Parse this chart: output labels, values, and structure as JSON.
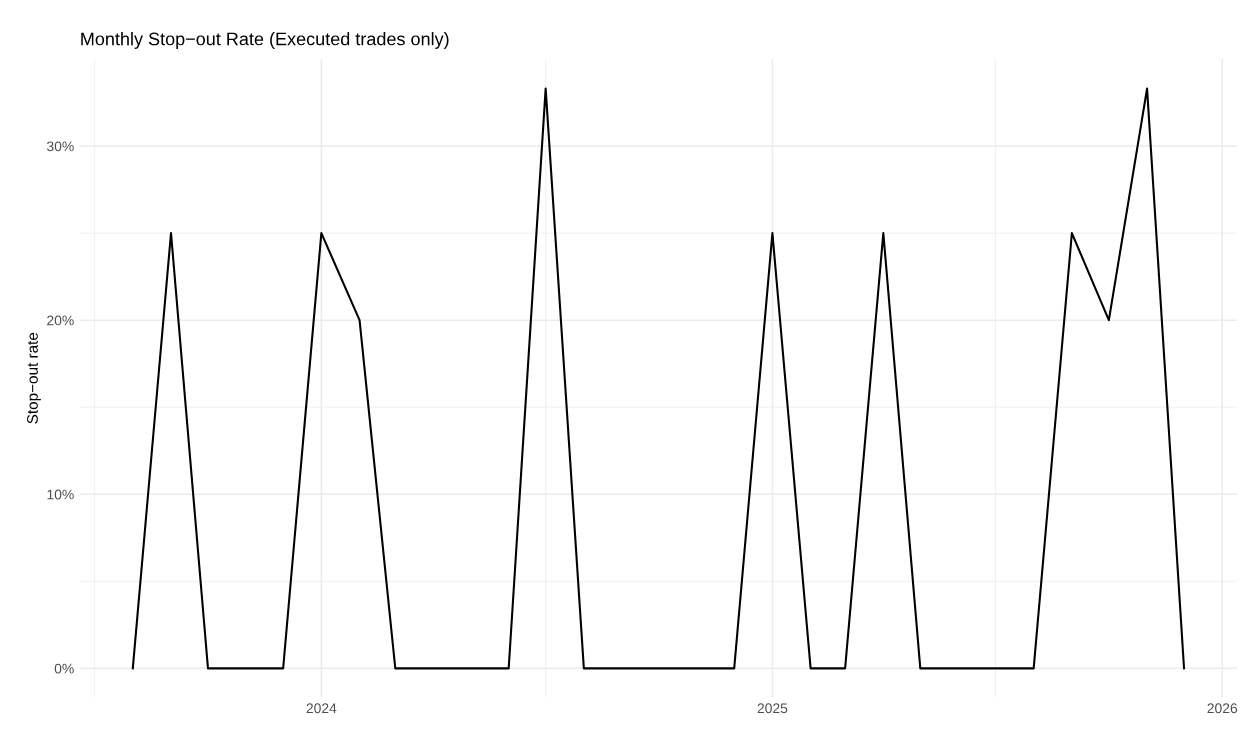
{
  "chart_data": {
    "type": "line",
    "title": "Monthly Stop−out Rate (Executed trades only)",
    "ylabel": "Stop−out rate",
    "x": [
      "2023-08",
      "2023-09",
      "2023-10",
      "2023-11",
      "2023-12",
      "2024-01",
      "2024-02",
      "2024-03",
      "2024-04",
      "2024-05",
      "2024-06",
      "2024-07",
      "2024-08",
      "2024-09",
      "2024-10",
      "2024-11",
      "2024-12",
      "2025-01",
      "2025-02",
      "2025-03",
      "2025-04",
      "2025-05",
      "2025-06",
      "2025-07",
      "2025-08",
      "2025-09",
      "2025-10",
      "2025-11",
      "2025-12"
    ],
    "series": [
      {
        "color": "#000000",
        "values": [
          0,
          25,
          0,
          0,
          0,
          25,
          20,
          0,
          0,
          0,
          0,
          33.3,
          0,
          0,
          0,
          0,
          0,
          25,
          0,
          0,
          25,
          0,
          0,
          0,
          0,
          25,
          20,
          33.3,
          0
        ]
      }
    ],
    "xlim": [
      "2023-06-19",
      "2026-01-13"
    ],
    "xticks": [
      {
        "value": "2023-07",
        "label": null
      },
      {
        "value": "2024",
        "label": "2024"
      },
      {
        "value": "2024-07",
        "label": null
      },
      {
        "value": "2025",
        "label": "2025"
      },
      {
        "value": "2025-07",
        "label": null
      },
      {
        "value": "2026",
        "label": "2026"
      }
    ],
    "ylim": [
      -1.67,
      35
    ],
    "yticks": [
      {
        "value": 0,
        "label": "0%"
      },
      {
        "value": 5,
        "label": null
      },
      {
        "value": 10,
        "label": "10%"
      },
      {
        "value": 15,
        "label": null
      },
      {
        "value": 20,
        "label": "20%"
      },
      {
        "value": 25,
        "label": null
      },
      {
        "value": 30,
        "label": "30%"
      }
    ],
    "grid": true,
    "marker": "none",
    "line_style": "solid"
  }
}
